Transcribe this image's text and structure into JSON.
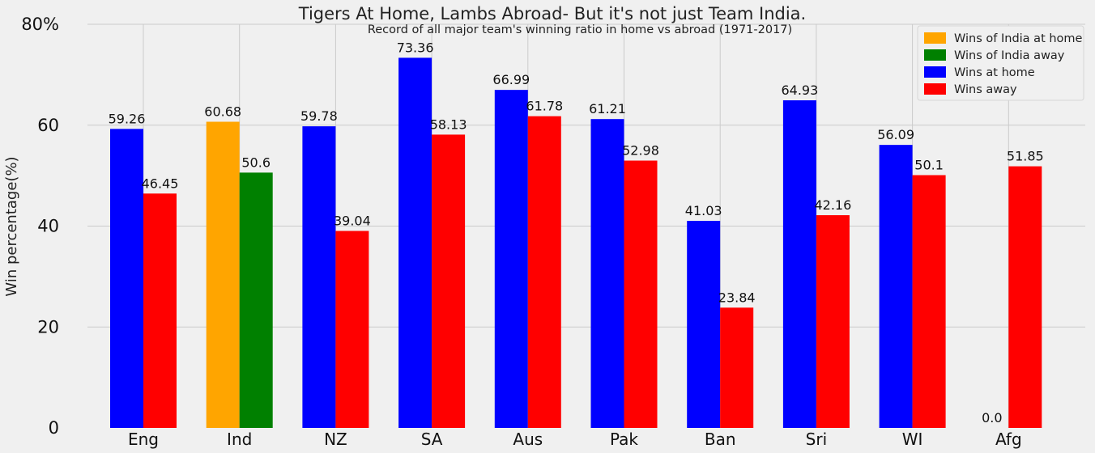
{
  "chart_data": {
    "type": "bar",
    "title": "Tigers At Home, Lambs Abroad- But it's not just Team India.",
    "subtitle": "Record of all major team's winning ratio in home vs abroad (1971-2017)",
    "ylabel": "Win percentage(%)",
    "ylim": [
      0,
      80
    ],
    "yticks": [
      "0",
      "20",
      "40",
      "60",
      "80%"
    ],
    "categories": [
      "Eng",
      "Ind",
      "NZ",
      "SA",
      "Aus",
      "Pak",
      "Ban",
      "Sri",
      "WI",
      "Afg"
    ],
    "series": [
      {
        "name": "Wins at home",
        "color": "#0000ff",
        "values": [
          59.26,
          60.68,
          59.78,
          73.36,
          66.99,
          61.21,
          41.03,
          64.93,
          56.09,
          0.0
        ],
        "labels": [
          "59.26",
          "60.68",
          "59.78",
          "73.36",
          "66.99",
          "61.21",
          "41.03",
          "64.93",
          "56.09",
          "0.0"
        ]
      },
      {
        "name": "Wins away",
        "color": "#ff0000",
        "values": [
          46.45,
          50.6,
          39.04,
          58.13,
          61.78,
          52.98,
          23.84,
          42.16,
          50.1,
          51.85
        ],
        "labels": [
          "46.45",
          "50.6",
          "39.04",
          "58.13",
          "61.78",
          "52.98",
          "23.84",
          "42.16",
          "50.1",
          "51.85"
        ]
      }
    ],
    "highlight": {
      "category": "Ind",
      "home_name": "Wins of India at home",
      "home_color": "#ffa500",
      "away_name": "Wins of India away",
      "away_color": "#008000"
    },
    "legend": [
      {
        "name": "Wins of India at home",
        "color": "#ffa500"
      },
      {
        "name": "Wins of India away",
        "color": "#008000"
      },
      {
        "name": "Wins at home",
        "color": "#0000ff"
      },
      {
        "name": "Wins away",
        "color": "#ff0000"
      }
    ],
    "legend_position": "top-right",
    "grid": true,
    "background": "#f0f0f0",
    "grid_color": "#cbcbcb"
  }
}
